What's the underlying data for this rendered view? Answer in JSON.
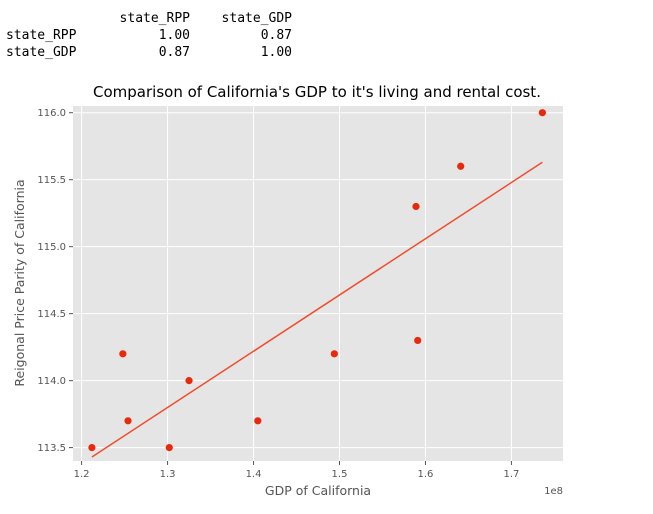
{
  "correlation_table": {
    "columns": [
      "state_RPP",
      "state_GDP"
    ],
    "rows": [
      {
        "label": "state_RPP",
        "values": [
          "1.00",
          "0.87"
        ]
      },
      {
        "label": "state_GDP",
        "values": [
          "0.87",
          "1.00"
        ]
      }
    ]
  },
  "chart_data": {
    "type": "scatter",
    "title": "Comparison of California's GDP to it's living and rental cost.",
    "xlabel": "GDP of California",
    "ylabel": "Reigonal Price Parity of California",
    "x_offset_label": "1e8",
    "xlim": [
      1.19,
      1.76
    ],
    "ylim": [
      113.4,
      116.05
    ],
    "x_ticks": [
      1.2,
      1.3,
      1.4,
      1.5,
      1.6,
      1.7
    ],
    "x_tick_labels": [
      "1.2",
      "1.3",
      "1.4",
      "1.5",
      "1.6",
      "1.7"
    ],
    "y_ticks": [
      113.5,
      114.0,
      114.5,
      115.0,
      115.5,
      116.0
    ],
    "y_tick_labels": [
      "113.5",
      "114.0",
      "114.5",
      "115.0",
      "115.5",
      "116.0"
    ],
    "grid": true,
    "series": [
      {
        "points": [
          {
            "x": 1.212,
            "y": 113.5
          },
          {
            "x": 1.248,
            "y": 114.2
          },
          {
            "x": 1.254,
            "y": 113.7
          },
          {
            "x": 1.302,
            "y": 113.5
          },
          {
            "x": 1.325,
            "y": 114.0
          },
          {
            "x": 1.405,
            "y": 113.7
          },
          {
            "x": 1.494,
            "y": 114.2
          },
          {
            "x": 1.589,
            "y": 115.3
          },
          {
            "x": 1.591,
            "y": 114.3
          },
          {
            "x": 1.641,
            "y": 115.6
          },
          {
            "x": 1.736,
            "y": 116.0
          }
        ]
      }
    ],
    "fit_line": {
      "x": [
        1.212,
        1.736
      ],
      "y": [
        113.43,
        115.63
      ]
    },
    "colors": {
      "background": "#e5e5e5",
      "grid": "#ffffff",
      "points": "#e8290b",
      "fit_line": "#f24c2a"
    }
  }
}
